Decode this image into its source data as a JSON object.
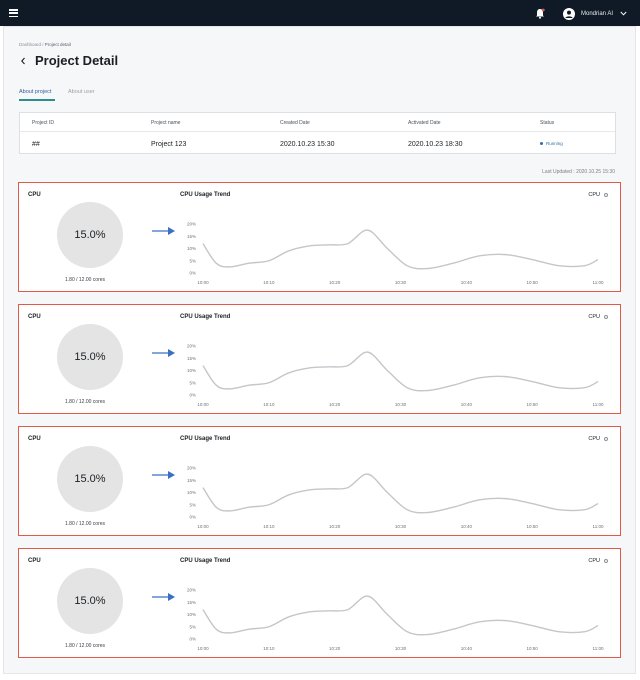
{
  "topbar": {
    "user_name": "Mondrian AI",
    "icons": [
      "menu-icon",
      "bell-icon",
      "user-avatar-icon",
      "chevron-down-icon"
    ]
  },
  "breadcrumb": {
    "parent": "Dashboard",
    "separator": " / ",
    "current": "Project detail"
  },
  "page_title": "Project Detail",
  "tabs": [
    {
      "label": "About project",
      "active": true
    },
    {
      "label": "About user",
      "active": false
    }
  ],
  "project_table": {
    "headers": [
      "Project ID",
      "Project name",
      "Created Date",
      "Activated Date",
      "Status"
    ],
    "values": [
      "##",
      "Project 123",
      "2020.10.23 15:30",
      "2020.10.23 18:30",
      "Running"
    ]
  },
  "last_updated": "Last Updated : 2020.10.25 15:30",
  "colors": {
    "topbar": "#101a26",
    "card_border": "#e05a4a",
    "arrow": "#3b6fc4",
    "status": "#2f6fa8",
    "tab_active_underline": "#2f8c8c"
  },
  "cards": [
    {
      "cpu_label": "CPU",
      "value": "15.0%",
      "cores": "1.80 / 12.00 cores",
      "trend_title": "CPU Usage Trend",
      "legend": "CPU"
    },
    {
      "cpu_label": "CPU",
      "value": "15.0%",
      "cores": "1.80 / 12.00 cores",
      "trend_title": "CPU Usage Trend",
      "legend": "CPU"
    },
    {
      "cpu_label": "CPU",
      "value": "15.0%",
      "cores": "1.80 / 12.00 cores",
      "trend_title": "CPU Usage Trend",
      "legend": "CPU"
    },
    {
      "cpu_label": "CPU",
      "value": "15.0%",
      "cores": "1.80 / 12.00 cores",
      "trend_title": "CPU Usage Trend",
      "legend": "CPU"
    }
  ],
  "chart_data": {
    "type": "line",
    "title": "CPU Usage Trend",
    "x_labels": [
      "10:00",
      "10:10",
      "10:20",
      "10:30",
      "10:40",
      "10:50",
      "11:00"
    ],
    "y_labels": [
      "0%",
      "5%",
      "10%",
      "15%",
      "20%"
    ],
    "ylim": [
      0,
      20
    ],
    "series": [
      {
        "name": "CPU",
        "x": [
          "10:00",
          "10:02",
          "10:04",
          "10:07",
          "10:10",
          "10:13",
          "10:16",
          "10:19",
          "10:22",
          "10:25",
          "10:28",
          "10:31",
          "10:34",
          "10:38",
          "10:42",
          "10:46",
          "10:50",
          "10:54",
          "10:58",
          "11:00"
        ],
        "values": [
          12,
          4,
          2.5,
          4,
          5,
          9,
          11,
          11.5,
          12,
          17.5,
          10,
          3,
          1.8,
          4,
          7,
          7.5,
          5.5,
          3,
          3,
          5.5
        ]
      }
    ],
    "grid": false
  }
}
